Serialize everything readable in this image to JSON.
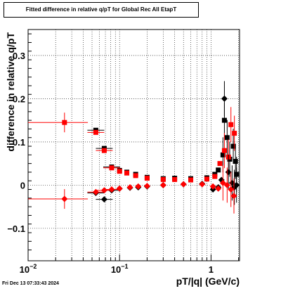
{
  "chart_data": {
    "type": "scatter",
    "title": "Fitted difference in relative q/pT for Global Rec All EtapT",
    "xlabel": "pT/|q| (GeV/c)",
    "ylabel": "difference in relative q/pT",
    "x_scale": "log",
    "xlim": [
      0.01,
      2.05
    ],
    "ylim": [
      -0.175,
      0.36
    ],
    "x_ticks": [
      {
        "value": 0.01,
        "label": "10",
        "sup": "−2"
      },
      {
        "value": 0.1,
        "label": "10",
        "sup": "−1"
      },
      {
        "value": 1,
        "label": "1",
        "sup": ""
      }
    ],
    "y_ticks": [
      {
        "value": -0.1,
        "label": "−0.1"
      },
      {
        "value": 0,
        "label": "0"
      },
      {
        "value": 0.1,
        "label": "0.1"
      },
      {
        "value": 0.2,
        "label": "0.2"
      },
      {
        "value": 0.3,
        "label": "0.3"
      }
    ],
    "grid": true,
    "series": [
      {
        "marker": "square",
        "color": "#000000",
        "points": [
          {
            "x": 0.055,
            "y": 0.127
          },
          {
            "x": 0.068,
            "y": 0.085
          },
          {
            "x": 0.082,
            "y": 0.042
          },
          {
            "x": 0.1,
            "y": 0.034
          },
          {
            "x": 0.12,
            "y": 0.03
          },
          {
            "x": 0.15,
            "y": 0.025
          },
          {
            "x": 0.2,
            "y": 0.018
          },
          {
            "x": 0.3,
            "y": 0.015
          },
          {
            "x": 0.4,
            "y": 0.016
          },
          {
            "x": 0.6,
            "y": 0.015
          },
          {
            "x": 0.9,
            "y": 0.017
          },
          {
            "x": 1.1,
            "y": 0.025
          },
          {
            "x": 1.2,
            "y": 0.035
          },
          {
            "x": 1.35,
            "y": 0.07
          },
          {
            "x": 1.4,
            "y": 0.15
          },
          {
            "x": 1.5,
            "y": 0.11
          },
          {
            "x": 1.6,
            "y": 0.06
          },
          {
            "x": 1.75,
            "y": 0.09
          },
          {
            "x": 1.85,
            "y": 0.055
          },
          {
            "x": 1.9,
            "y": 0.025
          }
        ]
      },
      {
        "marker": "square",
        "color": "#ff0000",
        "points": [
          {
            "x": 0.025,
            "y": 0.145
          },
          {
            "x": 0.055,
            "y": 0.122
          },
          {
            "x": 0.068,
            "y": 0.08
          },
          {
            "x": 0.082,
            "y": 0.04
          },
          {
            "x": 0.1,
            "y": 0.032
          },
          {
            "x": 0.12,
            "y": 0.028
          },
          {
            "x": 0.15,
            "y": 0.022
          },
          {
            "x": 0.2,
            "y": 0.016
          },
          {
            "x": 0.3,
            "y": 0.013
          },
          {
            "x": 0.4,
            "y": 0.013
          },
          {
            "x": 0.6,
            "y": 0.012
          },
          {
            "x": 0.9,
            "y": 0.014
          },
          {
            "x": 1.1,
            "y": 0.02
          },
          {
            "x": 1.25,
            "y": 0.05
          },
          {
            "x": 1.4,
            "y": 0.08
          },
          {
            "x": 1.55,
            "y": 0.065
          },
          {
            "x": 1.65,
            "y": 0.14
          },
          {
            "x": 1.8,
            "y": 0.12
          }
        ]
      },
      {
        "marker": "diamond",
        "color": "#000000",
        "points": [
          {
            "x": 0.055,
            "y": -0.018
          },
          {
            "x": 0.068,
            "y": -0.033
          },
          {
            "x": 0.082,
            "y": -0.012
          },
          {
            "x": 0.1,
            "y": -0.008
          },
          {
            "x": 0.13,
            "y": -0.006
          },
          {
            "x": 0.16,
            "y": -0.005
          },
          {
            "x": 0.2,
            "y": -0.003
          },
          {
            "x": 0.3,
            "y": 0.0
          },
          {
            "x": 0.5,
            "y": 0.002
          },
          {
            "x": 0.8,
            "y": 0.003
          },
          {
            "x": 1.05,
            "y": -0.01
          },
          {
            "x": 1.2,
            "y": -0.005
          },
          {
            "x": 1.3,
            "y": 0.012
          },
          {
            "x": 1.4,
            "y": 0.2
          },
          {
            "x": 1.55,
            "y": 0.03
          },
          {
            "x": 1.7,
            "y": 0.005
          },
          {
            "x": 1.8,
            "y": -0.005
          },
          {
            "x": 1.9,
            "y": 0.0
          }
        ]
      },
      {
        "marker": "diamond",
        "color": "#ff0000",
        "points": [
          {
            "x": 0.025,
            "y": -0.032
          },
          {
            "x": 0.055,
            "y": -0.016
          },
          {
            "x": 0.068,
            "y": -0.012
          },
          {
            "x": 0.082,
            "y": -0.01
          },
          {
            "x": 0.1,
            "y": -0.008
          },
          {
            "x": 0.13,
            "y": -0.005
          },
          {
            "x": 0.16,
            "y": -0.003
          },
          {
            "x": 0.2,
            "y": -0.002
          },
          {
            "x": 0.3,
            "y": 0.0
          },
          {
            "x": 0.5,
            "y": 0.002
          },
          {
            "x": 0.8,
            "y": 0.002
          },
          {
            "x": 1.05,
            "y": -0.003
          },
          {
            "x": 1.2,
            "y": -0.008
          },
          {
            "x": 1.35,
            "y": 0.005
          },
          {
            "x": 1.5,
            "y": 0.0
          },
          {
            "x": 1.65,
            "y": -0.01
          },
          {
            "x": 1.78,
            "y": -0.025
          }
        ]
      }
    ]
  },
  "footer": "Fri Dec 13 07:33:43 2024"
}
